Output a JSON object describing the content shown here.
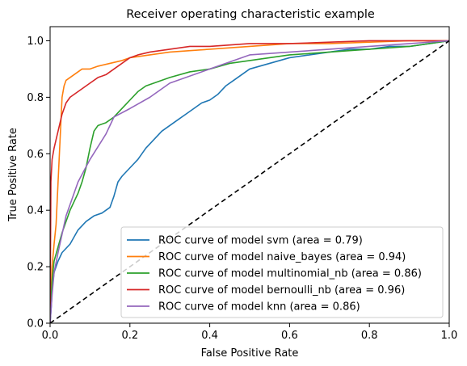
{
  "chart_data": {
    "type": "line",
    "title": "Receiver operating characteristic example",
    "xlabel": "False Positive Rate",
    "ylabel": "True Positive Rate",
    "xlim": [
      0.0,
      1.0
    ],
    "ylim": [
      0.0,
      1.05
    ],
    "xticks": [
      "0.0",
      "0.2",
      "0.4",
      "0.6",
      "0.8",
      "1.0"
    ],
    "xtick_values": [
      0.0,
      0.2,
      0.4,
      0.6,
      0.8,
      1.0
    ],
    "yticks": [
      "0.0",
      "0.2",
      "0.4",
      "0.6",
      "0.8",
      "1.0"
    ],
    "ytick_values": [
      0.0,
      0.2,
      0.4,
      0.6,
      0.8,
      1.0
    ],
    "grid": false,
    "legend_position": "lower-right",
    "reference_line": {
      "x": [
        0.0,
        1.0
      ],
      "y": [
        0.0,
        1.0
      ],
      "color": "#000000",
      "style": "dashed"
    },
    "series": [
      {
        "name": "ROC curve of model svm (area = 0.79)",
        "color": "#1f77b4",
        "x": [
          0.0,
          0.003,
          0.005,
          0.01,
          0.02,
          0.03,
          0.05,
          0.07,
          0.09,
          0.11,
          0.13,
          0.15,
          0.16,
          0.17,
          0.18,
          0.2,
          0.22,
          0.24,
          0.26,
          0.28,
          0.3,
          0.32,
          0.34,
          0.36,
          0.38,
          0.4,
          0.42,
          0.44,
          0.46,
          0.48,
          0.5,
          0.55,
          0.6,
          0.65,
          0.7,
          0.75,
          0.8,
          0.85,
          0.9,
          0.95,
          1.0
        ],
        "y": [
          0.0,
          0.06,
          0.12,
          0.18,
          0.22,
          0.25,
          0.28,
          0.33,
          0.36,
          0.38,
          0.39,
          0.41,
          0.45,
          0.5,
          0.52,
          0.55,
          0.58,
          0.62,
          0.65,
          0.68,
          0.7,
          0.72,
          0.74,
          0.76,
          0.78,
          0.79,
          0.81,
          0.84,
          0.86,
          0.88,
          0.9,
          0.92,
          0.94,
          0.95,
          0.96,
          0.97,
          0.97,
          0.98,
          0.98,
          0.99,
          1.0
        ]
      },
      {
        "name": "ROC curve of model naive_bayes (area = 0.94)",
        "color": "#ff7f0e",
        "x": [
          0.0,
          0.005,
          0.01,
          0.015,
          0.02,
          0.025,
          0.03,
          0.035,
          0.04,
          0.06,
          0.08,
          0.1,
          0.12,
          0.15,
          0.18,
          0.2,
          0.25,
          0.3,
          0.35,
          0.4,
          0.45,
          0.5,
          0.55,
          0.6,
          0.7,
          0.8,
          0.9,
          1.0
        ],
        "y": [
          0.0,
          0.2,
          0.28,
          0.35,
          0.5,
          0.65,
          0.8,
          0.84,
          0.86,
          0.88,
          0.9,
          0.9,
          0.91,
          0.92,
          0.93,
          0.94,
          0.95,
          0.96,
          0.965,
          0.97,
          0.975,
          0.98,
          0.985,
          0.99,
          0.99,
          0.995,
          1.0,
          1.0
        ]
      },
      {
        "name": "ROC curve of model multinomial_nb (area = 0.86)",
        "color": "#2ca02c",
        "x": [
          0.0,
          0.005,
          0.01,
          0.02,
          0.03,
          0.04,
          0.05,
          0.06,
          0.07,
          0.08,
          0.09,
          0.1,
          0.11,
          0.12,
          0.14,
          0.16,
          0.18,
          0.2,
          0.22,
          0.24,
          0.26,
          0.28,
          0.3,
          0.35,
          0.4,
          0.45,
          0.5,
          0.6,
          0.7,
          0.8,
          0.9,
          1.0
        ],
        "y": [
          0.0,
          0.15,
          0.22,
          0.27,
          0.32,
          0.36,
          0.4,
          0.43,
          0.46,
          0.5,
          0.55,
          0.62,
          0.68,
          0.7,
          0.71,
          0.73,
          0.76,
          0.79,
          0.82,
          0.84,
          0.85,
          0.86,
          0.87,
          0.89,
          0.9,
          0.92,
          0.93,
          0.95,
          0.96,
          0.97,
          0.98,
          1.0
        ]
      },
      {
        "name": "ROC curve of model bernoulli_nb (area = 0.96)",
        "color": "#d62728",
        "x": [
          0.0,
          0.002,
          0.005,
          0.01,
          0.02,
          0.03,
          0.04,
          0.05,
          0.06,
          0.08,
          0.1,
          0.12,
          0.14,
          0.16,
          0.18,
          0.2,
          0.22,
          0.25,
          0.3,
          0.35,
          0.4,
          0.45,
          0.5,
          0.6,
          0.7,
          0.8,
          0.9,
          1.0
        ],
        "y": [
          0.0,
          0.5,
          0.58,
          0.62,
          0.68,
          0.74,
          0.78,
          0.8,
          0.81,
          0.83,
          0.85,
          0.87,
          0.88,
          0.9,
          0.92,
          0.94,
          0.95,
          0.96,
          0.97,
          0.98,
          0.98,
          0.985,
          0.99,
          0.99,
          0.995,
          1.0,
          1.0,
          1.0
        ]
      },
      {
        "name": "ROC curve of model knn (area = 0.86)",
        "color": "#9467bd",
        "x": [
          0.0,
          0.005,
          0.01,
          0.02,
          0.04,
          0.07,
          0.1,
          0.14,
          0.16,
          0.2,
          0.25,
          0.3,
          0.4,
          0.5,
          0.6,
          0.7,
          0.8,
          1.0
        ],
        "y": [
          0.0,
          0.1,
          0.18,
          0.25,
          0.38,
          0.5,
          0.58,
          0.67,
          0.73,
          0.76,
          0.8,
          0.85,
          0.9,
          0.95,
          0.96,
          0.97,
          0.98,
          1.0
        ]
      }
    ]
  }
}
